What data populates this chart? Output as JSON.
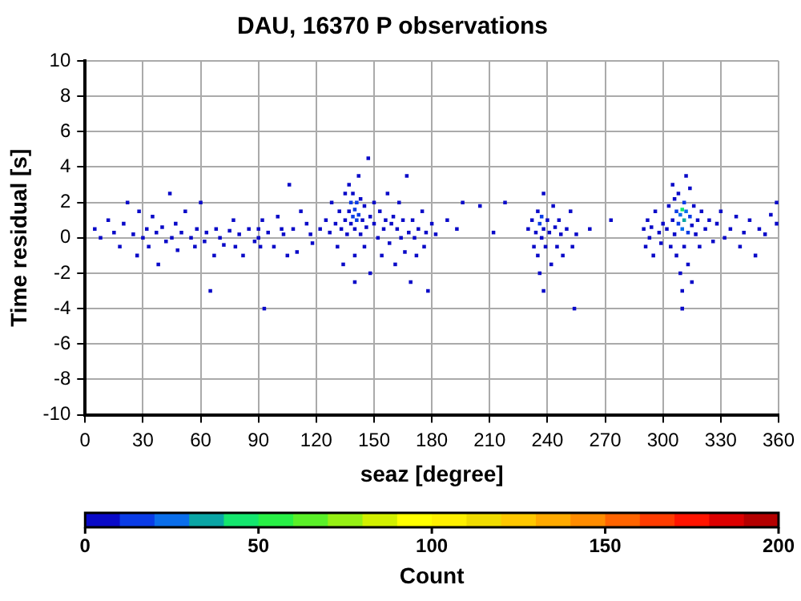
{
  "chart_data": {
    "type": "scatter",
    "title": "DAU, 16370 P observations",
    "xlabel": "seaz [degree]",
    "ylabel": "Time residual [s]",
    "clabel": "Count",
    "xlim": [
      0,
      360
    ],
    "xticks": [
      0,
      30,
      60,
      90,
      120,
      150,
      180,
      210,
      240,
      270,
      300,
      330,
      360
    ],
    "ylim": [
      -10,
      10
    ],
    "yticks": [
      -10,
      -8,
      -6,
      -4,
      -2,
      0,
      2,
      4,
      6,
      8,
      10
    ],
    "clim": [
      0,
      200
    ],
    "cticks": [
      0,
      50,
      100,
      150,
      200
    ],
    "grid": true,
    "legend": false,
    "marker": "square",
    "x": [
      5,
      8,
      12,
      15,
      18,
      20,
      22,
      25,
      27,
      28,
      30,
      32,
      33,
      35,
      37,
      38,
      40,
      42,
      44,
      45,
      47,
      48,
      50,
      52,
      55,
      57,
      58,
      60,
      62,
      63,
      65,
      67,
      68,
      70,
      72,
      75,
      77,
      78,
      80,
      82,
      85,
      88,
      90,
      90,
      91,
      92,
      93,
      95,
      98,
      100,
      102,
      103,
      105,
      106,
      108,
      110,
      112,
      115,
      117,
      118,
      122,
      125,
      127,
      128,
      130,
      131,
      132,
      133,
      134,
      135,
      135,
      136,
      137,
      137,
      138,
      138,
      139,
      139,
      140,
      140,
      140,
      140,
      141,
      141,
      142,
      142,
      143,
      143,
      144,
      145,
      145,
      146,
      147,
      148,
      148,
      150,
      150,
      152,
      153,
      154,
      155,
      156,
      157,
      158,
      159,
      160,
      161,
      162,
      163,
      164,
      165,
      166,
      167,
      168,
      169,
      170,
      171,
      172,
      173,
      175,
      176,
      177,
      178,
      180,
      182,
      188,
      193,
      196,
      205,
      212,
      218,
      230,
      232,
      233,
      234,
      235,
      235,
      236,
      236,
      237,
      237,
      238,
      238,
      238,
      239,
      240,
      241,
      242,
      243,
      244,
      245,
      246,
      247,
      248,
      250,
      252,
      253,
      254,
      255,
      262,
      273,
      290,
      291,
      292,
      293,
      294,
      295,
      296,
      298,
      299,
      300,
      302,
      303,
      304,
      305,
      305,
      306,
      306,
      307,
      307,
      308,
      308,
      309,
      309,
      310,
      310,
      310,
      310,
      311,
      311,
      311,
      312,
      312,
      313,
      313,
      314,
      314,
      315,
      315,
      316,
      317,
      318,
      319,
      320,
      322,
      324,
      326,
      328,
      330,
      332,
      335,
      338,
      340,
      342,
      345,
      348,
      350,
      353,
      356,
      359,
      359
    ],
    "values": [
      0.5,
      0,
      1,
      0.3,
      -0.5,
      0.8,
      2,
      0.2,
      -1,
      1.5,
      0,
      0.5,
      -0.5,
      1.2,
      0.3,
      -1.5,
      0.6,
      -0.2,
      2.5,
      0,
      0.8,
      -0.7,
      0.3,
      1.5,
      0,
      -0.5,
      0.5,
      2,
      -0.2,
      0.3,
      -3,
      -1,
      0.5,
      0,
      -0.4,
      0.4,
      1,
      -0.5,
      0.2,
      -1,
      0.5,
      -0.2,
      0,
      0.5,
      -0.5,
      1,
      -4,
      0.3,
      -0.5,
      1.2,
      0.5,
      0.2,
      -1,
      3,
      0.5,
      -0.8,
      1.5,
      0.8,
      0.2,
      -0.3,
      0.5,
      1,
      0.3,
      2,
      0.8,
      -0.5,
      1.5,
      0.5,
      -1.5,
      2.5,
      1,
      0.2,
      3,
      1.5,
      2,
      0.8,
      1.2,
      2.5,
      1.6,
      0.5,
      -1,
      -2.5,
      2,
      1,
      3.5,
      1.3,
      0.2,
      2.2,
      1,
      1.8,
      -0.5,
      0.6,
      4.5,
      1.2,
      -2,
      0.8,
      2,
      0,
      1.5,
      -1,
      0.5,
      1,
      2.5,
      -0.3,
      0.8,
      1.2,
      -1.5,
      0.5,
      2,
      0,
      1,
      -0.8,
      3.5,
      0.3,
      -2.5,
      1,
      0,
      -1,
      0.5,
      1.5,
      -0.5,
      0.3,
      -3,
      0.8,
      0.2,
      1,
      0.5,
      2,
      1.8,
      0.3,
      2,
      0.5,
      1,
      -0.5,
      0.3,
      1.5,
      -1,
      0.8,
      -2,
      1.2,
      0,
      0.5,
      2.5,
      -3,
      -0.5,
      1,
      0.3,
      -1.5,
      1.8,
      0.6,
      -0.5,
      1,
      0.2,
      -1,
      0.5,
      1.5,
      -0.5,
      -4,
      0.2,
      0.5,
      1,
      0.5,
      -0.5,
      1,
      0,
      0.6,
      -1,
      1.5,
      0.3,
      -0.3,
      0.8,
      0.5,
      1.8,
      -0.5,
      1,
      3,
      0.2,
      2.2,
      1.5,
      -1,
      0.8,
      2.5,
      1.3,
      -2,
      1.6,
      0.5,
      -3,
      -4,
      1,
      2,
      -0.5,
      1.5,
      3.5,
      0.3,
      -1.5,
      1.2,
      2.8,
      0.7,
      -2.5,
      1.8,
      0.2,
      1,
      -0.5,
      1.5,
      0.5,
      1,
      -0.2,
      0.8,
      1.5,
      0,
      0.5,
      1.2,
      -0.5,
      0.3,
      1,
      -1,
      0.5,
      0.2,
      1.3,
      0.8,
      2
    ],
    "cvalues": [
      1,
      1,
      1,
      1,
      1,
      1,
      1,
      2,
      1,
      1,
      2,
      2,
      1,
      1,
      2,
      1,
      2,
      1,
      1,
      2,
      1,
      1,
      1,
      1,
      1,
      1,
      2,
      1,
      1,
      1,
      1,
      1,
      1,
      1,
      1,
      1,
      1,
      1,
      1,
      1,
      1,
      1,
      3,
      3,
      2,
      1,
      1,
      1,
      1,
      1,
      3,
      3,
      1,
      1,
      2,
      1,
      1,
      1,
      1,
      1,
      1,
      2,
      2,
      1,
      3,
      1,
      3,
      4,
      1,
      3,
      5,
      4,
      2,
      8,
      10,
      9,
      14,
      6,
      18,
      8,
      3,
      1,
      12,
      15,
      2,
      11,
      6,
      7,
      8,
      5,
      3,
      6,
      1,
      4,
      1,
      3,
      2,
      2,
      2,
      1,
      3,
      3,
      2,
      2,
      4,
      4,
      1,
      3,
      1,
      3,
      2,
      2,
      1,
      2,
      1,
      2,
      2,
      1,
      2,
      1,
      2,
      1,
      1,
      1,
      1,
      1,
      1,
      1,
      1,
      1,
      1,
      1,
      2,
      2,
      4,
      5,
      3,
      10,
      2,
      12,
      8,
      9,
      3,
      1,
      5,
      5,
      4,
      2,
      2,
      3,
      2,
      2,
      3,
      1,
      2,
      1,
      1,
      1,
      1,
      1,
      1,
      3,
      2,
      4,
      5,
      4,
      2,
      3,
      4,
      3,
      5,
      4,
      3,
      3,
      8,
      2,
      7,
      6,
      14,
      4,
      18,
      8,
      25,
      3,
      42,
      22,
      2,
      1,
      30,
      18,
      8,
      20,
      3,
      12,
      4,
      10,
      4,
      8,
      1,
      5,
      4,
      3,
      2,
      2,
      2,
      1,
      1,
      1,
      1,
      1,
      1,
      1,
      1,
      1,
      1,
      1,
      1,
      1,
      1,
      1,
      1
    ]
  }
}
